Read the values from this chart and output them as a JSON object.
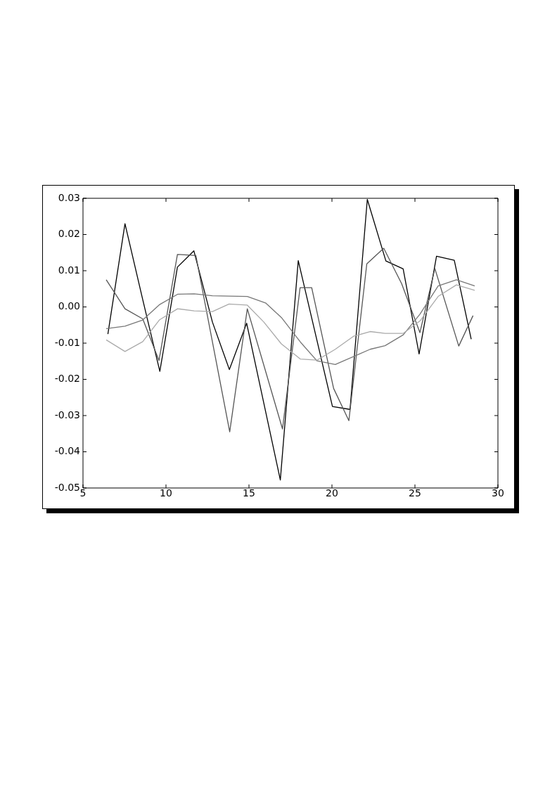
{
  "chart_data": {
    "type": "line",
    "xlim": [
      5,
      30
    ],
    "xticks": [
      5,
      10,
      15,
      20,
      25,
      30
    ],
    "ylim": [
      -0.05,
      0.03
    ],
    "yticks": [
      -0.05,
      -0.04,
      -0.03,
      -0.02,
      -0.01,
      {
        "value": 0,
        "label": "0.00"
      },
      0.01,
      0.02,
      0.03
    ],
    "grid": false,
    "legend": false,
    "marker": "none",
    "line_style": "solid",
    "series": [
      {
        "color": "#aaaaaa",
        "x": [
          6.4,
          7.53,
          8.6,
          9.6,
          10.7,
          11.7,
          12.8,
          13.8,
          14.9,
          15.9,
          16.95,
          18.1,
          19.1,
          20.2,
          21.3,
          22.3,
          23.2,
          24.3,
          25.3,
          26.4,
          27.5,
          28.6
        ],
        "values": [
          -0.0091,
          -0.0123,
          -0.0096,
          -0.0036,
          -0.0005,
          -0.0011,
          -0.0013,
          0.0008,
          0.0005,
          -0.0042,
          -0.0102,
          -0.0144,
          -0.0147,
          -0.0117,
          -0.0081,
          -0.0068,
          -0.0073,
          -0.0073,
          -0.0039,
          0.0029,
          0.0061,
          0.0046
        ]
      },
      {
        "color": "#777777",
        "x": [
          6.4,
          7.53,
          8.6,
          9.6,
          10.7,
          11.7,
          12.8,
          13.8,
          14.9,
          16.0,
          16.95,
          18.1,
          19.1,
          20.2,
          21.3,
          22.3,
          23.2,
          24.3,
          25.3,
          26.4,
          27.5,
          28.6
        ],
        "values": [
          -0.006,
          -0.0053,
          -0.0036,
          0.0006,
          0.0035,
          0.0036,
          0.0031,
          0.003,
          0.0029,
          0.0011,
          -0.0029,
          -0.0097,
          -0.0149,
          -0.0159,
          -0.0137,
          -0.0117,
          -0.0107,
          -0.0077,
          -0.002,
          0.0058,
          0.0075,
          0.0058
        ]
      },
      {
        "color": "#555555",
        "x": [
          6.4,
          7.53,
          8.6,
          9.58,
          10.69,
          11.8,
          13.84,
          14.9,
          17.02,
          18.08,
          18.78,
          20.1,
          21.02,
          22.1,
          23.12,
          24.2,
          25.3,
          26.2,
          27.64,
          28.5
        ],
        "values": [
          0.0075,
          -0.0005,
          -0.0033,
          -0.0148,
          0.0145,
          0.0142,
          -0.0345,
          -0.0005,
          -0.0337,
          0.0053,
          0.0053,
          -0.0225,
          -0.0314,
          0.0119,
          0.0162,
          0.0064,
          -0.0071,
          0.0106,
          -0.0108,
          -0.0024
        ]
      },
      {
        "color": "#000000",
        "x": [
          6.5,
          7.53,
          8.6,
          9.63,
          10.69,
          11.68,
          12.8,
          13.82,
          14.86,
          16.89,
          17.97,
          20.03,
          21.09,
          22.13,
          23.25,
          24.29,
          25.25,
          26.3,
          27.37,
          28.39
        ],
        "values": [
          -0.0075,
          0.023,
          0.002,
          -0.0178,
          0.011,
          0.0155,
          -0.0042,
          -0.0173,
          -0.0045,
          -0.0478,
          0.0128,
          -0.0275,
          -0.0283,
          0.0297,
          0.0127,
          0.0105,
          -0.013,
          0.014,
          0.0129,
          -0.0089
        ]
      }
    ]
  }
}
